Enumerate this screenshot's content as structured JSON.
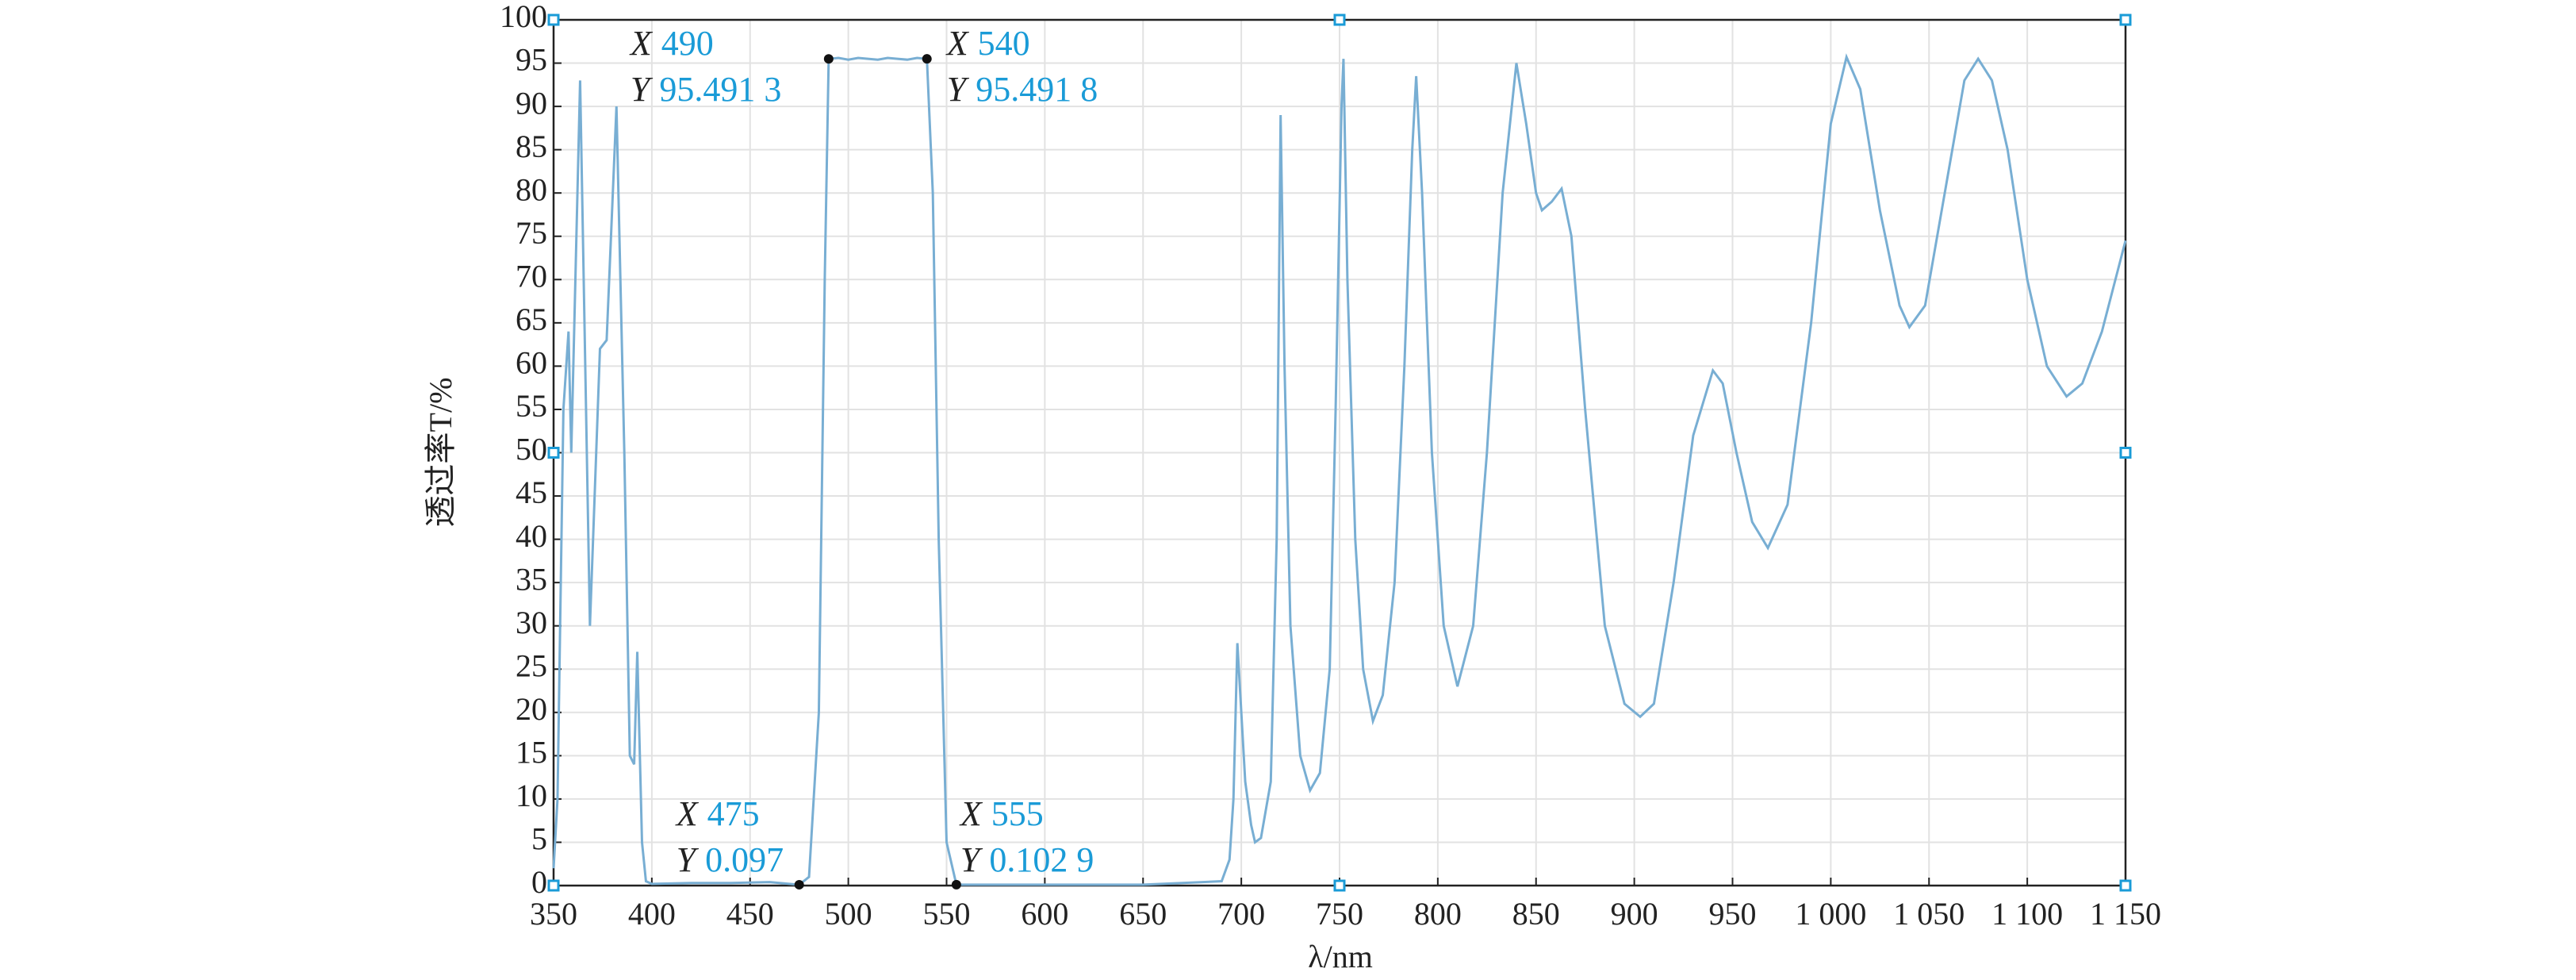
{
  "chart_data": {
    "type": "line",
    "xlabel": "λ/nm",
    "ylabel": "透过率T/%",
    "x": [
      350,
      352,
      355,
      357.6,
      359,
      363.5,
      368.5,
      373.6,
      377,
      382,
      386,
      388.8,
      391,
      392.6,
      395,
      397,
      400,
      420,
      440,
      460,
      475,
      480,
      485,
      488,
      490,
      495,
      500,
      505,
      510,
      515,
      520,
      525,
      530,
      535,
      540,
      543,
      546,
      550,
      555,
      560,
      600,
      650,
      690,
      694,
      696,
      698,
      700,
      702,
      705,
      707,
      710,
      715,
      718,
      720,
      722,
      725,
      730,
      735,
      740,
      745,
      748,
      751,
      752,
      754,
      758,
      762,
      767,
      772,
      778,
      783,
      787,
      789,
      792,
      797,
      803,
      810,
      818,
      825,
      833,
      840,
      845,
      850,
      853,
      858,
      863,
      868,
      875,
      885,
      895,
      903,
      910,
      920,
      930,
      940,
      945,
      952,
      960,
      968,
      978,
      990,
      1000,
      1008,
      1015,
      1025,
      1035,
      1040,
      1048,
      1058,
      1068,
      1075,
      1082,
      1090,
      1100,
      1110,
      1120,
      1128,
      1138,
      1150
    ],
    "series": [
      {
        "name": "T",
        "color": "#78aed3",
        "values": [
          2,
          10,
          55,
          64,
          50,
          93,
          30,
          62,
          63,
          90,
          50,
          15,
          14,
          27,
          5,
          0.5,
          0.2,
          0.3,
          0.3,
          0.4,
          0.097,
          1,
          20,
          70,
          95.4913,
          95.6,
          95.4,
          95.6,
          95.5,
          95.4,
          95.6,
          95.5,
          95.4,
          95.6,
          95.4918,
          80,
          40,
          5,
          0.1029,
          0.1,
          0.1,
          0.1,
          0.5,
          3,
          10,
          28,
          20,
          12,
          7,
          5,
          5.5,
          12,
          40,
          89,
          60,
          30,
          15,
          11,
          13,
          25,
          55,
          90,
          95.5,
          70,
          40,
          25,
          19,
          22,
          35,
          60,
          85,
          93.5,
          80,
          50,
          30,
          23,
          30,
          50,
          80,
          95,
          88,
          80,
          78,
          79,
          80.5,
          75,
          55,
          30,
          21,
          19.5,
          21,
          35,
          52,
          59.5,
          58,
          50,
          42,
          39,
          44,
          65,
          88,
          95.7,
          92,
          78,
          67,
          64.5,
          67,
          80,
          93,
          95.5,
          93,
          85,
          70,
          60,
          56.5,
          58,
          64,
          74.5
        ]
      }
    ],
    "xlim": [
      350,
      1150
    ],
    "ylim": [
      0,
      100
    ],
    "xticks": [
      350,
      400,
      450,
      500,
      550,
      600,
      650,
      700,
      750,
      800,
      850,
      900,
      950,
      {
        "value": 1000,
        "label": "1 000"
      },
      {
        "value": 1050,
        "label": "1 050"
      },
      {
        "value": 1100,
        "label": "1 100"
      },
      {
        "value": 1150,
        "label": "1 150"
      }
    ],
    "yticks": [
      0,
      5,
      10,
      15,
      20,
      25,
      30,
      35,
      40,
      45,
      50,
      55,
      60,
      65,
      70,
      75,
      80,
      85,
      90,
      95,
      100
    ],
    "grid": true,
    "tip_x_prefix": "X",
    "tip_y_prefix": "Y",
    "annotations": [
      {
        "x": 490,
        "y": 95.4913,
        "y_label": "95.491 3"
      },
      {
        "x": 540,
        "y": 95.4918,
        "y_label": "95.491 8"
      },
      {
        "x": 475,
        "y": 0.097
      },
      {
        "x": 555,
        "y": 0.1029,
        "y_label": "0.102 9"
      }
    ]
  }
}
